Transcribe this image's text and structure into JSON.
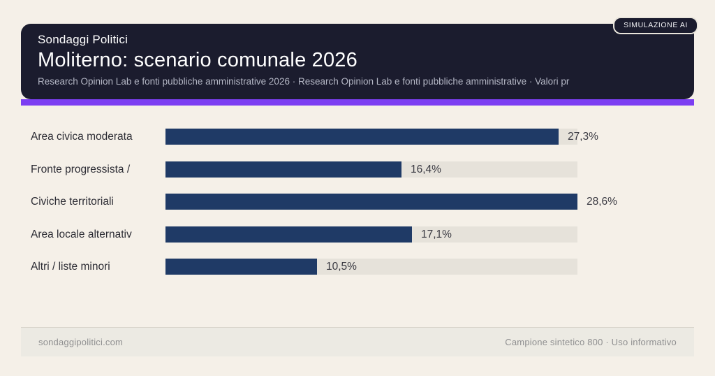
{
  "badge": {
    "label": "SIMULAZIONE AI"
  },
  "header": {
    "brand": "Sondaggi Politici",
    "title": "Moliterno: scenario comunale 2026",
    "subtitle": "Research Opinion Lab e fonti pubbliche amministrative 2026 · Research Opinion Lab e fonti pubbliche amministrative · Valori pr"
  },
  "chart_data": {
    "type": "bar",
    "orientation": "horizontal",
    "title": "Moliterno: scenario comunale 2026",
    "categories": [
      "Area civica moderata",
      "Fronte progressista /",
      "Civiche territoriali",
      "Area locale alternativ",
      "Altri / liste minori"
    ],
    "values": [
      27.3,
      16.4,
      28.6,
      17.1,
      10.5
    ],
    "value_labels": [
      "27,3%",
      "16,4%",
      "28,6%",
      "17,1%",
      "10,5%"
    ],
    "xlim": [
      0,
      28.6
    ],
    "grid": false,
    "legend": "none",
    "bar_color": "#1f3a66",
    "track_color": "#e6e2da"
  },
  "footer": {
    "left": "sondaggipolitici.com",
    "right": "Campione sintetico 800 · Uso informativo"
  },
  "colors": {
    "background": "#f5f0e8",
    "header_bg": "#1b1c2e",
    "accent": "#7c3ef2",
    "bar": "#1f3a66"
  }
}
